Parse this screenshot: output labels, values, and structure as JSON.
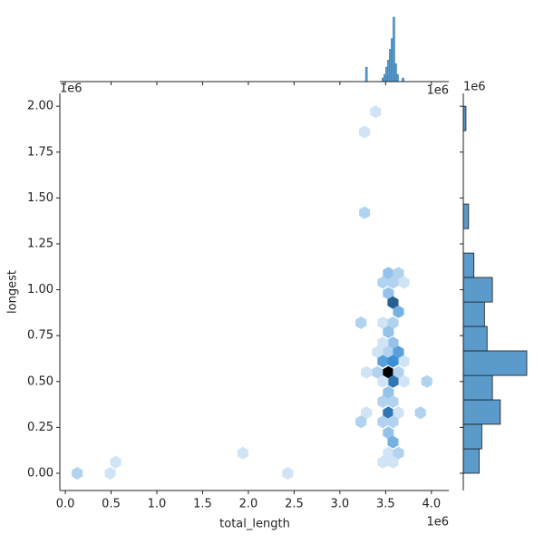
{
  "chart_data": [
    {
      "type": "hexbin",
      "x_label": "total_length",
      "y_label": "longest",
      "x_offset_label": "1e6",
      "y_offset_label": "1e6",
      "xlim": [
        -0.06,
        4.19
      ],
      "ylim": [
        -0.094,
        2.07
      ],
      "xticks": [
        {
          "value": 0,
          "label": "0.0"
        },
        0.5,
        {
          "value": 1,
          "label": "1.0"
        },
        1.5,
        {
          "value": 2,
          "label": "2.0"
        },
        2.5,
        {
          "value": 3,
          "label": "3.0"
        },
        3.5,
        {
          "value": 4,
          "label": "4.0"
        }
      ],
      "yticks": [
        {
          "value": 0,
          "label": "0.00"
        },
        0.25,
        {
          "value": 0.5,
          "label": "0.50"
        },
        0.75,
        {
          "value": 1,
          "label": "1.00"
        },
        1.25,
        {
          "value": 1.5,
          "label": "1.50"
        },
        1.75,
        {
          "value": 2,
          "label": "2.00"
        }
      ],
      "cmap": [
        "#eef5fc",
        "#3a8fd6",
        "#000000"
      ],
      "x": [
        0.13,
        0.49,
        0.55,
        1.94,
        2.43,
        3.39,
        3.27,
        3.27,
        3.53,
        3.64,
        3.47,
        3.58,
        3.7,
        3.53,
        3.58,
        3.64,
        3.23,
        3.47,
        3.58,
        3.53,
        3.58,
        3.47,
        3.41,
        3.53,
        3.64,
        3.47,
        3.58,
        3.7,
        3.29,
        3.41,
        3.53,
        3.64,
        3.58,
        3.47,
        3.7,
        3.95,
        3.53,
        3.47,
        3.58,
        3.29,
        3.53,
        3.64,
        3.88,
        3.23,
        3.47,
        3.58,
        3.53,
        3.58,
        3.53,
        3.64,
        3.47,
        3.58
      ],
      "y": [
        0.0,
        0.0,
        0.06,
        0.11,
        0.0,
        1.97,
        1.86,
        1.42,
        1.09,
        1.09,
        1.04,
        1.04,
        1.04,
        0.98,
        0.93,
        0.88,
        0.82,
        0.82,
        0.82,
        0.77,
        0.71,
        0.71,
        0.66,
        0.66,
        0.66,
        0.61,
        0.61,
        0.61,
        0.55,
        0.55,
        0.55,
        0.55,
        0.5,
        0.5,
        0.5,
        0.5,
        0.44,
        0.39,
        0.39,
        0.33,
        0.33,
        0.33,
        0.33,
        0.28,
        0.28,
        0.28,
        0.22,
        0.17,
        0.11,
        0.11,
        0.06,
        0.06
      ],
      "counts": [
        2,
        1,
        1,
        1,
        1,
        1,
        1,
        2,
        3,
        2,
        2,
        2,
        1,
        3,
        8,
        4,
        2,
        1,
        2,
        3,
        3,
        1,
        1,
        2,
        5,
        5,
        6,
        1,
        1,
        2,
        12,
        2,
        7,
        1,
        1,
        2,
        3,
        2,
        2,
        1,
        7,
        1,
        2,
        2,
        2,
        2,
        3,
        4,
        1,
        2,
        1,
        1
      ]
    },
    {
      "type": "histogram",
      "orientation": "vertical",
      "color": "#5a9bcc",
      "edgecolor": "#3a7cb0",
      "x_offset_label": "1e6",
      "ylim": [
        0,
        19
      ],
      "bins": [
        3.24,
        3.26,
        3.28,
        3.3,
        3.32,
        3.34,
        3.36,
        3.38,
        3.4,
        3.42,
        3.44,
        3.46,
        3.48,
        3.5,
        3.52,
        3.54,
        3.56,
        3.58,
        3.6,
        3.62,
        3.64,
        3.66,
        3.68,
        3.7,
        3.72
      ],
      "counts": [
        0,
        0,
        4,
        0,
        0,
        0,
        0,
        0,
        0,
        0,
        0,
        1,
        2,
        4,
        6,
        9,
        12,
        18,
        5,
        2,
        0,
        0,
        1,
        0
      ]
    },
    {
      "type": "histogram",
      "orientation": "horizontal",
      "color": "#5a9bcc",
      "edgecolor": "#1a1a1a",
      "y_offset_label": "1e6",
      "xlim": [
        0,
        24
      ],
      "bins": [
        0,
        0.133,
        0.267,
        0.4,
        0.533,
        0.667,
        0.8,
        0.933,
        1.067,
        1.2,
        1.333,
        1.467,
        1.6,
        1.733,
        1.867,
        2.0
      ],
      "counts": [
        6,
        7,
        14,
        11,
        24,
        9,
        8,
        11,
        4,
        0,
        2,
        0,
        0,
        0,
        1
      ]
    }
  ]
}
